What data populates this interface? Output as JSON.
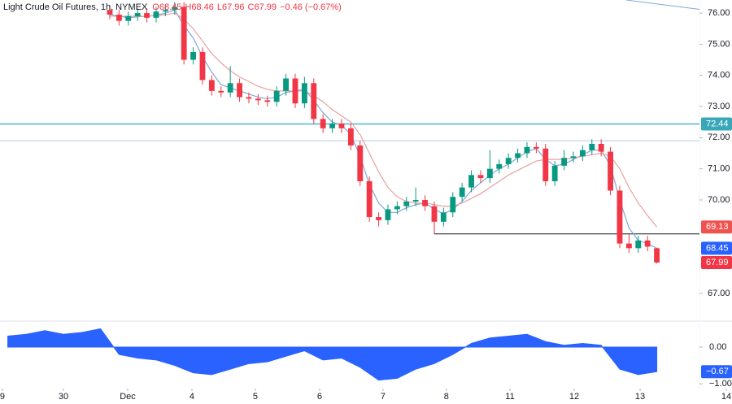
{
  "chart_data": {
    "type": "candlestick",
    "title": "Light Crude Oil Futures, 1h, NYMEX",
    "legend_values": [
      "O68.45",
      "H68.46",
      "L67.96",
      "C67.99",
      "−0.46 (−0.67%)"
    ],
    "up_color": "#089981",
    "down_color": "#f23645",
    "open": [
      76.1,
      75.95,
      75.75,
      75.9,
      76.0,
      75.85,
      76.05,
      76.1,
      76.2,
      74.5,
      74.75,
      73.85,
      73.5,
      73.45,
      73.75,
      73.3,
      73.25,
      73.2,
      73.15,
      73.5,
      73.9,
      73.1,
      73.75,
      72.6,
      72.3,
      72.45,
      72.3,
      71.75,
      70.6,
      69.45,
      69.35,
      69.7,
      69.8,
      69.95,
      70.0,
      69.8,
      69.3,
      69.6,
      70.1,
      70.4,
      70.8,
      70.7,
      71.0,
      71.15,
      71.35,
      71.5,
      71.7,
      71.65,
      70.6,
      71.1,
      71.35,
      71.4,
      71.6,
      71.8,
      71.55,
      70.3,
      68.6,
      68.45,
      68.7,
      68.45
    ],
    "high": [
      76.25,
      76.1,
      76.05,
      76.15,
      76.15,
      76.2,
      76.25,
      76.35,
      76.35,
      74.9,
      74.9,
      74.0,
      73.65,
      74.3,
      73.9,
      73.45,
      73.4,
      73.35,
      73.65,
      74.05,
      74.05,
      73.95,
      73.9,
      72.75,
      72.6,
      72.6,
      72.45,
      71.9,
      70.75,
      69.6,
      69.85,
      69.95,
      70.1,
      70.4,
      70.15,
      69.95,
      69.75,
      70.25,
      70.55,
      70.95,
      70.95,
      71.6,
      71.3,
      71.5,
      71.65,
      71.85,
      71.85,
      71.8,
      71.25,
      71.6,
      71.55,
      71.75,
      71.95,
      71.95,
      71.7,
      70.45,
      68.9,
      68.85,
      68.85,
      68.46
    ],
    "low": [
      75.8,
      75.6,
      75.6,
      75.75,
      75.7,
      75.7,
      75.9,
      75.95,
      74.35,
      74.35,
      73.7,
      73.35,
      73.3,
      73.3,
      73.15,
      73.1,
      73.05,
      73.0,
      73.0,
      73.35,
      72.95,
      72.95,
      72.45,
      72.15,
      72.15,
      72.15,
      71.6,
      70.45,
      69.3,
      69.15,
      69.2,
      69.55,
      69.65,
      69.8,
      69.65,
      68.91,
      69.15,
      69.45,
      69.95,
      70.25,
      70.55,
      70.55,
      70.85,
      71.0,
      71.2,
      71.35,
      71.5,
      70.45,
      70.45,
      70.95,
      71.2,
      71.25,
      71.45,
      71.4,
      70.15,
      68.45,
      68.3,
      68.3,
      68.35,
      67.96
    ],
    "close": [
      75.95,
      75.75,
      75.9,
      76.0,
      75.85,
      76.05,
      76.1,
      76.2,
      74.5,
      74.75,
      73.85,
      73.5,
      73.45,
      73.75,
      73.3,
      73.25,
      73.2,
      73.15,
      73.5,
      73.9,
      73.1,
      73.75,
      72.6,
      72.3,
      72.45,
      72.3,
      71.75,
      70.6,
      69.45,
      69.35,
      69.7,
      69.8,
      69.95,
      70.0,
      69.8,
      69.3,
      69.6,
      70.1,
      70.4,
      70.8,
      70.7,
      71.0,
      71.15,
      71.35,
      71.5,
      71.7,
      71.65,
      70.6,
      71.1,
      71.35,
      71.4,
      71.6,
      71.8,
      71.55,
      70.3,
      68.6,
      68.45,
      68.7,
      68.5,
      67.99
    ],
    "series": [
      {
        "color": "#7fa9d9",
        "values": [
          75.95,
          75.9,
          75.85,
          75.88,
          75.9,
          75.93,
          76.0,
          76.1,
          75.6,
          75.2,
          74.6,
          74.1,
          73.7,
          73.6,
          73.5,
          73.4,
          73.3,
          73.25,
          73.3,
          73.45,
          73.5,
          73.55,
          73.2,
          72.8,
          72.5,
          72.4,
          72.1,
          71.4,
          70.5,
          69.9,
          69.6,
          69.6,
          69.75,
          69.85,
          69.9,
          69.7,
          69.55,
          69.7,
          69.95,
          70.3,
          70.55,
          70.8,
          71.0,
          71.15,
          71.35,
          71.55,
          71.65,
          71.3,
          71.1,
          71.15,
          71.3,
          71.45,
          71.6,
          71.6,
          71.1,
          70.0,
          69.1,
          68.7,
          68.6,
          68.45
        ]
      },
      {
        "color": "#e8a0a0",
        "values": [
          75.9,
          75.9,
          75.9,
          75.9,
          75.9,
          75.92,
          75.95,
          76.0,
          75.8,
          75.5,
          75.1,
          74.7,
          74.4,
          74.15,
          73.95,
          73.8,
          73.65,
          73.55,
          73.5,
          73.5,
          73.5,
          73.5,
          73.35,
          73.15,
          72.9,
          72.7,
          72.5,
          72.1,
          71.5,
          70.9,
          70.4,
          70.1,
          69.95,
          69.9,
          69.9,
          69.85,
          69.8,
          69.8,
          69.9,
          70.05,
          70.2,
          70.4,
          70.6,
          70.8,
          70.95,
          71.1,
          71.25,
          71.3,
          71.3,
          71.3,
          71.35,
          71.4,
          71.45,
          71.5,
          71.4,
          71.0,
          70.4,
          69.9,
          69.5,
          69.13
        ]
      }
    ],
    "xlim": [
      -11.84,
      63.6
    ],
    "x_labels": [
      {
        "value": -11.58,
        "label": "9"
      },
      {
        "value": -5,
        "label": "30"
      },
      {
        "value": 1.93,
        "label": "Dec"
      },
      {
        "value": 8.86,
        "label": "4"
      },
      {
        "value": 15.7,
        "label": "5"
      },
      {
        "value": 22.63,
        "label": "6"
      },
      {
        "value": 29.47,
        "label": "7"
      },
      {
        "value": 36.3,
        "label": "8"
      },
      {
        "value": 43.16,
        "label": "11"
      },
      {
        "value": 50.09,
        "label": "12"
      },
      {
        "value": 57.2,
        "label": "13"
      },
      {
        "value": 66.5,
        "label": "14"
      }
    ],
    "ylim": [
      66.11,
      76.42
    ],
    "yticks": [
      {
        "value": 67,
        "label": "67.00"
      },
      {
        "value": 70,
        "label": "70.00"
      },
      {
        "value": 71,
        "label": "71.00"
      },
      {
        "value": 72,
        "label": "72.00"
      },
      {
        "value": 73,
        "label": "73.00"
      },
      {
        "value": 74,
        "label": "74.00"
      },
      {
        "value": 75,
        "label": "75.00"
      },
      {
        "value": 76,
        "label": "76.00"
      }
    ],
    "levels": [
      {
        "value": 72.44,
        "color": "#4fb8c9"
      },
      {
        "value": 71.9,
        "color": "#b8c8e8"
      }
    ],
    "support": {
      "x": 35,
      "value": 68.91,
      "color": "#131722"
    },
    "trendline": {
      "x": [
        55.7,
        63.6
      ],
      "values": [
        76.42,
        76.12
      ],
      "color": "#7fa9d9"
    },
    "price_labels": [
      {
        "value": 72.44,
        "label": "72.44",
        "color": "#3aa7b8"
      },
      {
        "value": 69.13,
        "label": "69.13",
        "color": "#ef5350"
      },
      {
        "value": 68.45,
        "label": "68.45",
        "color": "#2962ff"
      },
      {
        "value": 67.99,
        "label": "67.99",
        "color": "#f23645"
      }
    ],
    "oscillator": {
      "type": "area",
      "color": "#2962ff",
      "x": [
        -11,
        -9,
        -7,
        -5,
        -3,
        -1,
        1,
        3,
        5,
        7,
        9,
        11,
        13,
        15,
        17,
        19,
        21,
        23,
        25,
        27,
        29,
        31,
        33,
        35,
        37,
        39,
        41,
        43,
        45,
        47,
        49,
        51,
        53,
        55,
        57,
        59
      ],
      "values": [
        0.3,
        0.35,
        0.45,
        0.35,
        0.4,
        0.5,
        -0.2,
        -0.3,
        -0.35,
        -0.5,
        -0.7,
        -0.75,
        -0.6,
        -0.45,
        -0.4,
        -0.25,
        -0.1,
        -0.35,
        -0.3,
        -0.55,
        -0.9,
        -0.85,
        -0.6,
        -0.45,
        -0.2,
        0.1,
        0.25,
        0.3,
        0.35,
        0.15,
        0.05,
        0.1,
        0.05,
        -0.6,
        -0.75,
        -0.67
      ],
      "ylim": [
        -1.13,
        0.71
      ],
      "yticks": [
        {
          "value": 0,
          "label": "0.00"
        },
        {
          "value": -1,
          "label": "−1.00"
        }
      ],
      "last_label": {
        "value": -0.67,
        "label": "−0.67"
      }
    }
  }
}
